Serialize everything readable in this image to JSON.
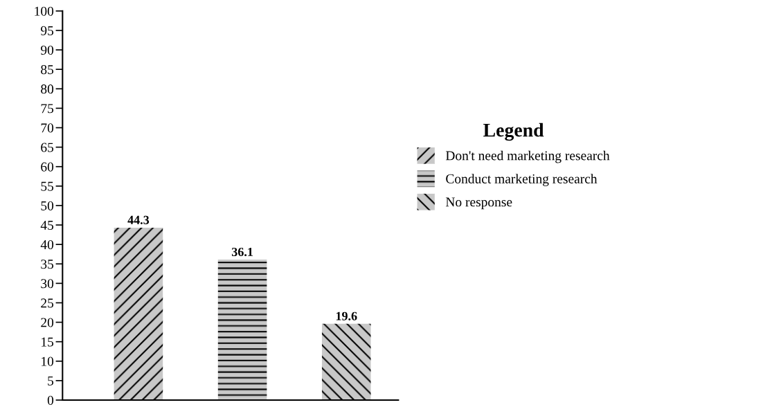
{
  "chart_data": {
    "type": "bar",
    "categories": [
      null,
      null,
      null
    ],
    "series": [
      {
        "name": "Don't need marketing research",
        "color": "#c8c8c8",
        "values": [
          44.3,
          null,
          null
        ]
      },
      {
        "name": "Conduct marketing research",
        "color": "#c8c8c8",
        "values": [
          null,
          36.1,
          null
        ]
      },
      {
        "name": "No response",
        "color": "#c8c8c8",
        "values": [
          null,
          null,
          19.6
        ]
      }
    ],
    "ylim": [
      0,
      100
    ],
    "yticks": [
      0,
      5,
      10,
      15,
      20,
      25,
      30,
      35,
      40,
      45,
      50,
      55,
      60,
      65,
      70,
      75,
      80,
      85,
      90,
      95,
      100
    ],
    "data_labels": true,
    "legend": "right",
    "legend_title": "Legend",
    "grid": false
  }
}
